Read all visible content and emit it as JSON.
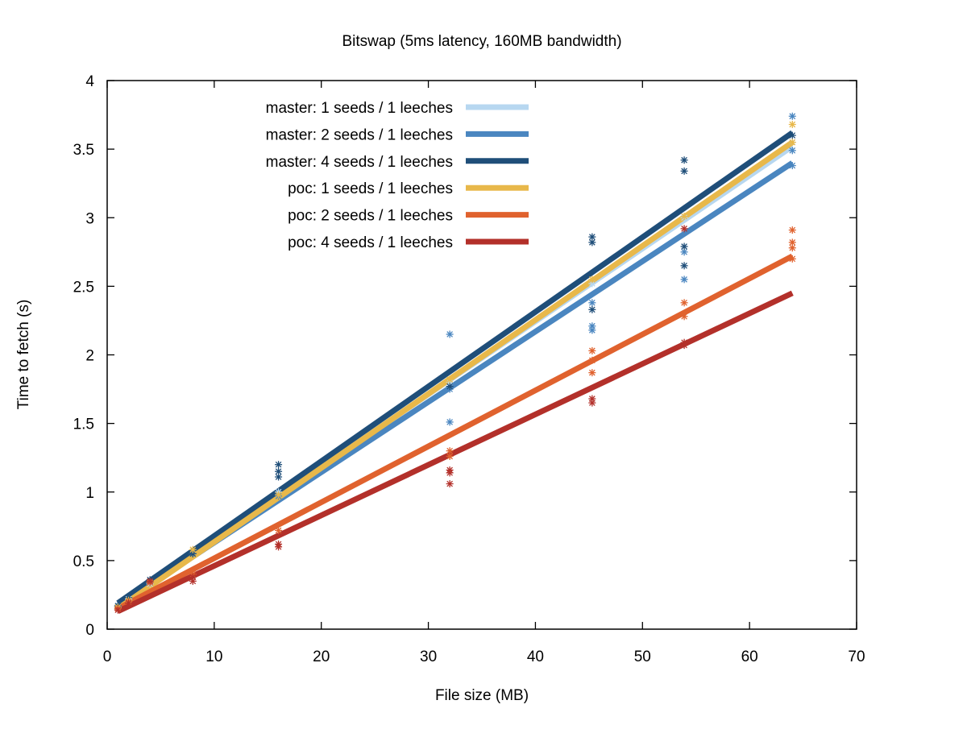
{
  "chart_data": {
    "type": "scatter",
    "title": "Bitswap (5ms latency, 160MB bandwidth)",
    "xlabel": "File size (MB)",
    "ylabel": "Time to fetch (s)",
    "xlim": [
      0,
      70
    ],
    "ylim": [
      0,
      4
    ],
    "x_ticks": [
      0,
      10,
      20,
      30,
      40,
      50,
      60,
      70
    ],
    "y_ticks": [
      0,
      0.5,
      1,
      1.5,
      2,
      2.5,
      3,
      3.5,
      4
    ],
    "grid": false,
    "legend_position": "top-left",
    "series": [
      {
        "name": "master: 1 seeds / 1 leeches",
        "color": "#b7d7f0",
        "fit_line": [
          [
            1,
            0.17
          ],
          [
            64,
            3.52
          ]
        ],
        "points": [
          [
            1,
            0.17
          ],
          [
            2,
            0.22
          ],
          [
            4,
            0.33
          ],
          [
            8,
            0.55
          ],
          [
            16,
            1.0
          ],
          [
            32,
            1.8
          ],
          [
            45.3,
            2.52
          ],
          [
            53.9,
            3.0
          ],
          [
            64,
            3.55
          ]
        ]
      },
      {
        "name": "master: 2 seeds / 1 leeches",
        "color": "#4a86c0",
        "fit_line": [
          [
            1,
            0.17
          ],
          [
            64,
            3.4
          ]
        ],
        "points": [
          [
            1,
            0.16
          ],
          [
            2,
            0.21
          ],
          [
            4,
            0.34
          ],
          [
            8,
            0.55
          ],
          [
            16,
            0.97
          ],
          [
            32,
            1.51
          ],
          [
            32,
            1.75
          ],
          [
            32,
            2.15
          ],
          [
            45.3,
            2.18
          ],
          [
            45.3,
            2.21
          ],
          [
            45.3,
            2.38
          ],
          [
            53.9,
            2.55
          ],
          [
            53.9,
            2.75
          ],
          [
            64,
            3.38
          ],
          [
            64,
            3.49
          ],
          [
            64,
            3.74
          ]
        ]
      },
      {
        "name": "master: 4 seeds / 1 leeches",
        "color": "#1f4e79",
        "fit_line": [
          [
            1,
            0.19
          ],
          [
            64,
            3.62
          ]
        ],
        "points": [
          [
            1,
            0.17
          ],
          [
            2,
            0.23
          ],
          [
            4,
            0.36
          ],
          [
            8,
            0.55
          ],
          [
            16,
            1.11
          ],
          [
            16,
            1.15
          ],
          [
            16,
            1.2
          ],
          [
            32,
            1.77
          ],
          [
            45.3,
            2.33
          ],
          [
            45.3,
            2.82
          ],
          [
            45.3,
            2.86
          ],
          [
            53.9,
            2.65
          ],
          [
            53.9,
            2.79
          ],
          [
            53.9,
            3.34
          ],
          [
            53.9,
            3.42
          ],
          [
            64,
            3.6
          ]
        ]
      },
      {
        "name": "poc: 1 seeds / 1 leeches",
        "color": "#e8b84a",
        "fit_line": [
          [
            1,
            0.15
          ],
          [
            64,
            3.55
          ]
        ],
        "points": [
          [
            1,
            0.16
          ],
          [
            2,
            0.21
          ],
          [
            4,
            0.34
          ],
          [
            8,
            0.58
          ],
          [
            16,
            0.98
          ],
          [
            32,
            1.82
          ],
          [
            45.3,
            2.55
          ],
          [
            53.9,
            3.01
          ],
          [
            64,
            3.55
          ],
          [
            64,
            3.68
          ]
        ]
      },
      {
        "name": "poc: 2 seeds / 1 leeches",
        "color": "#e0622e",
        "fit_line": [
          [
            1,
            0.15
          ],
          [
            64,
            2.72
          ]
        ],
        "points": [
          [
            1,
            0.15
          ],
          [
            2,
            0.2
          ],
          [
            4,
            0.34
          ],
          [
            8,
            0.4
          ],
          [
            16,
            0.72
          ],
          [
            32,
            1.26
          ],
          [
            32,
            1.3
          ],
          [
            45.3,
            1.87
          ],
          [
            45.3,
            1.96
          ],
          [
            45.3,
            2.03
          ],
          [
            53.9,
            2.28
          ],
          [
            53.9,
            2.38
          ],
          [
            64,
            2.7
          ],
          [
            64,
            2.78
          ],
          [
            64,
            2.82
          ],
          [
            64,
            2.91
          ]
        ]
      },
      {
        "name": "poc: 4 seeds / 1 leeches",
        "color": "#b3302a",
        "fit_line": [
          [
            1,
            0.13
          ],
          [
            64,
            2.45
          ]
        ],
        "points": [
          [
            1,
            0.14
          ],
          [
            2,
            0.19
          ],
          [
            4,
            0.35
          ],
          [
            8,
            0.35
          ],
          [
            8,
            0.38
          ],
          [
            16,
            0.6
          ],
          [
            16,
            0.62
          ],
          [
            32,
            1.06
          ],
          [
            32,
            1.14
          ],
          [
            32,
            1.16
          ],
          [
            45.3,
            1.65
          ],
          [
            45.3,
            1.68
          ],
          [
            53.9,
            2.07
          ],
          [
            53.9,
            2.09
          ],
          [
            53.9,
            2.92
          ]
        ]
      }
    ]
  }
}
